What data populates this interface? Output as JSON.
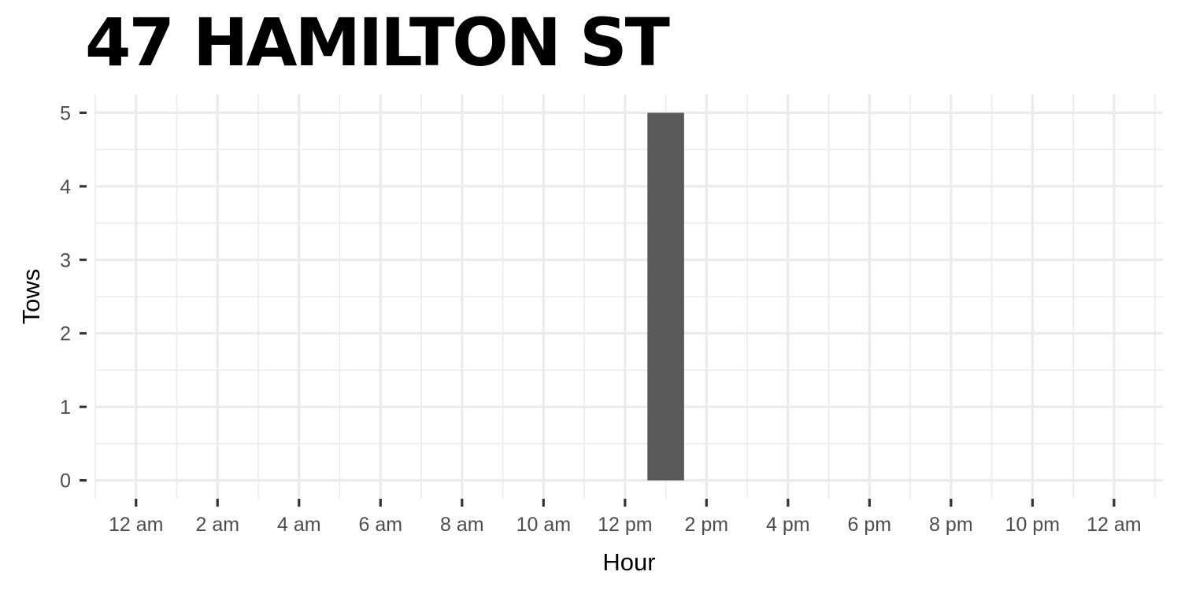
{
  "chart_data": {
    "type": "bar",
    "title": "47 HAMILTON ST",
    "xlabel": "Hour",
    "ylabel": "Tows",
    "x_ticks": [
      "12 am",
      "2 am",
      "4 am",
      "6 am",
      "8 am",
      "10 am",
      "12 pm",
      "2 pm",
      "4 pm",
      "6 pm",
      "8 pm",
      "10 pm",
      "12 am"
    ],
    "x_tick_hours": [
      0,
      2,
      4,
      6,
      8,
      10,
      12,
      14,
      16,
      18,
      20,
      22,
      24
    ],
    "y_ticks": [
      0,
      1,
      2,
      3,
      4,
      5
    ],
    "xlim": [
      -1,
      25.2
    ],
    "ylim": [
      -0.25,
      5.25
    ],
    "bars": [
      {
        "hour": 13,
        "value": 5
      }
    ],
    "grid": true,
    "colors": {
      "bar": "#595959",
      "grid": "#ebebeb",
      "background": "#ffffff"
    }
  }
}
